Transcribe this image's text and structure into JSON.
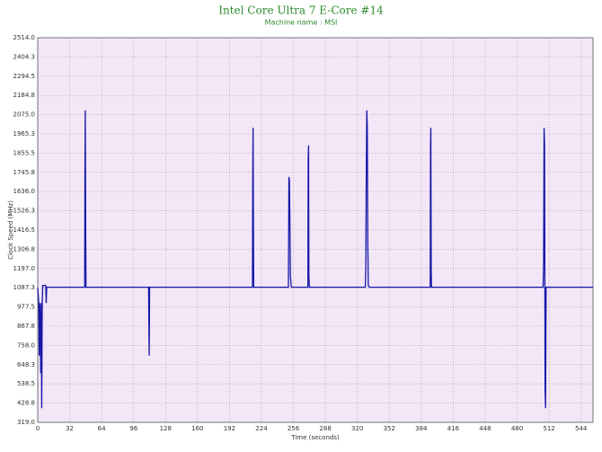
{
  "chart_data": {
    "type": "line",
    "title": "Intel Core Ultra 7 E-Core #14",
    "subtitle": "Machine name : MSI",
    "x_label": "Time (seconds)",
    "y_label": "Clock Speed (MHz)",
    "grid": true,
    "background": "#f3e6f7",
    "xlim": [
      0,
      556
    ],
    "ylim": [
      319,
      2514
    ],
    "xticks": [
      0,
      32,
      64,
      96,
      128,
      160,
      192,
      224,
      256,
      288,
      320,
      352,
      384,
      416,
      448,
      480,
      512,
      544
    ],
    "yticks": [
      {
        "value": 319,
        "label": "319.0"
      },
      {
        "value": 428.75,
        "label": "428.8"
      },
      {
        "value": 538.5,
        "label": "538.5"
      },
      {
        "value": 648.25,
        "label": "648.3"
      },
      {
        "value": 758,
        "label": "758.0"
      },
      {
        "value": 867.75,
        "label": "867.8"
      },
      {
        "value": 977.5,
        "label": "977.5"
      },
      {
        "value": 1087.25,
        "label": "1087.3"
      },
      {
        "value": 1197,
        "label": "1197.0"
      },
      {
        "value": 1306.75,
        "label": "1306.8"
      },
      {
        "value": 1416.5,
        "label": "1416.5"
      },
      {
        "value": 1526.25,
        "label": "1526.3"
      },
      {
        "value": 1636,
        "label": "1636.0"
      },
      {
        "value": 1745.75,
        "label": "1745.8"
      },
      {
        "value": 1855.5,
        "label": "1855.5"
      },
      {
        "value": 1965.25,
        "label": "1965.3"
      },
      {
        "value": 2075,
        "label": "2075.0"
      },
      {
        "value": 2184.75,
        "label": "2184.8"
      },
      {
        "value": 2294.5,
        "label": "2294.5"
      },
      {
        "value": 2404.25,
        "label": "2404.3"
      },
      {
        "value": 2514,
        "label": "2514.0"
      }
    ],
    "x": [
      0,
      1,
      1.5,
      2,
      2.5,
      3,
      3.5,
      4,
      4.5,
      5,
      8,
      8.5,
      9,
      47,
      47.3,
      47.6,
      48,
      48.3,
      111,
      111.3,
      111.6,
      112,
      215,
      215.3,
      215.6,
      216,
      216.3,
      251,
      251.5,
      252,
      252.5,
      253,
      254,
      270.5,
      270.8,
      271.2,
      271.5,
      272,
      328,
      328.5,
      329,
      329.5,
      330,
      330.5,
      331,
      332,
      393,
      393.3,
      393.6,
      394,
      394.3,
      506,
      506.5,
      507,
      507.5,
      508,
      508.5,
      509,
      556
    ],
    "series": [
      {
        "name": "E-Core #14",
        "color": "#1616a8",
        "values": [
          1087,
          1000,
          700,
          1000,
          900,
          600,
          1000,
          400,
          1000,
          1100,
          1100,
          1000,
          1090,
          1090,
          1750,
          2100,
          1450,
          1090,
          1090,
          850,
          700,
          1090,
          1090,
          1700,
          2000,
          1400,
          1090,
          1090,
          1720,
          1700,
          1450,
          1150,
          1090,
          1090,
          1820,
          1900,
          1150,
          1090,
          1090,
          1200,
          1760,
          2100,
          2000,
          1350,
          1100,
          1090,
          1090,
          1900,
          2000,
          1180,
          1090,
          1090,
          1200,
          2000,
          1900,
          500,
          400,
          1090,
          1090
        ]
      }
    ]
  }
}
